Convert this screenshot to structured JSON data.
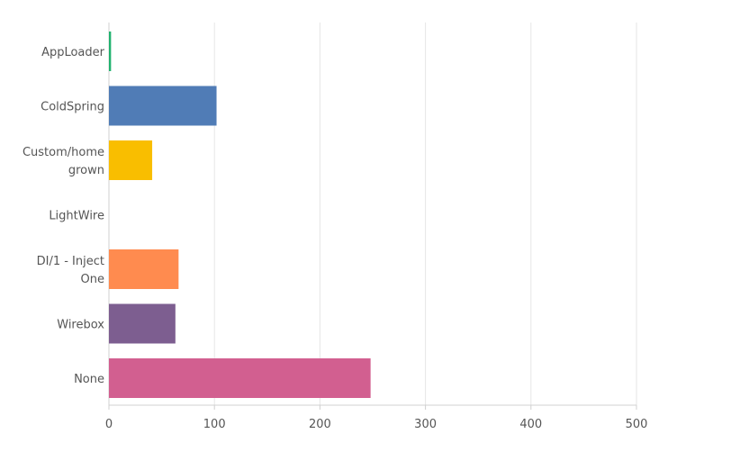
{
  "chart_data": {
    "type": "bar",
    "orientation": "horizontal",
    "categories": [
      [
        "AppLoader"
      ],
      [
        "ColdSpring"
      ],
      [
        "Custom/home",
        "grown"
      ],
      [
        "LightWire"
      ],
      [
        "DI/1 - Inject",
        "One"
      ],
      [
        "Wirebox"
      ],
      [
        "None"
      ]
    ],
    "values": [
      2,
      102,
      41,
      0,
      66,
      63,
      248
    ],
    "colors": [
      "#21B26F",
      "#507CB6",
      "#F9BE00",
      "#6BC8CD",
      "#FF8B4F",
      "#7D5E90",
      "#D25F90"
    ],
    "xlim": [
      0,
      500
    ],
    "xticks": [
      "0",
      "100",
      "200",
      "300",
      "400",
      "500"
    ],
    "grid": true,
    "title": "",
    "xlabel": "",
    "ylabel": ""
  }
}
